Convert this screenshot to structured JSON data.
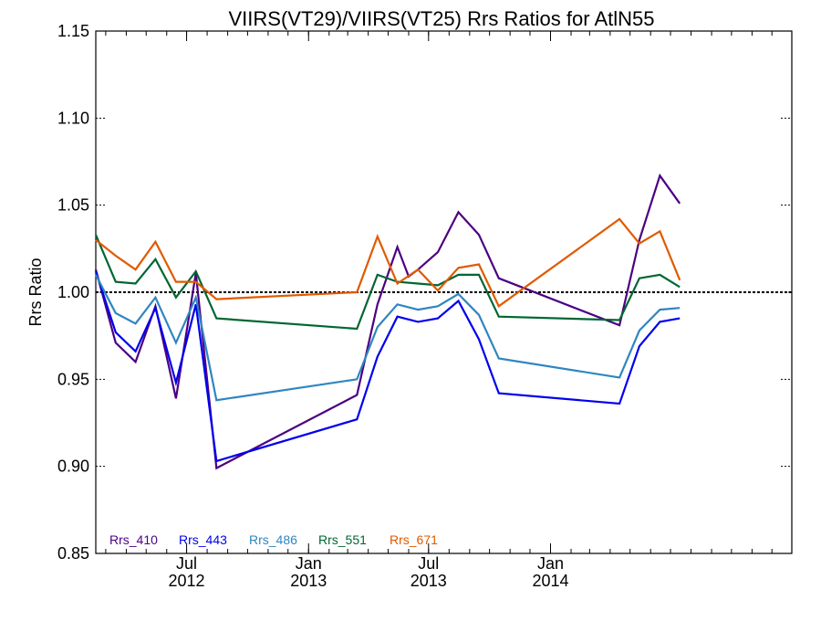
{
  "chart_data": {
    "type": "line",
    "title": "VIIRS(VT29)/VIIRS(VT25)  Rrs Ratios for AtlN55",
    "xlabel": "",
    "ylabel": "Rrs Ratio",
    "xlim": [
      "2012-02-15",
      "2014-12-31"
    ],
    "ylim": [
      0.85,
      1.15
    ],
    "yticks": [
      0.85,
      0.9,
      0.95,
      1.0,
      1.05,
      1.1,
      1.15
    ],
    "ytick_labels": [
      "0.85",
      "0.90",
      "0.95",
      "1.00",
      "1.05",
      "1.10",
      "1.15"
    ],
    "xticks": [
      {
        "date": "2012-07-01",
        "month": "Jul",
        "year": "2012"
      },
      {
        "date": "2013-01-01",
        "month": "Jan",
        "year": "2013"
      },
      {
        "date": "2013-07-01",
        "month": "Jul",
        "year": "2013"
      },
      {
        "date": "2014-01-01",
        "month": "Jan",
        "year": "2014"
      }
    ],
    "reference_line": 1.0,
    "grid": false,
    "legend_position": "bottom-left",
    "series": [
      {
        "name": "Rrs_410",
        "color": "#4b0082",
        "points": [
          [
            "2012-02-15",
            1.013
          ],
          [
            "2012-03-16",
            0.971
          ],
          [
            "2012-04-15",
            0.96
          ],
          [
            "2012-05-15",
            0.992
          ],
          [
            "2012-06-15",
            0.939
          ],
          [
            "2012-07-15",
            1.011
          ],
          [
            "2012-08-15",
            0.899
          ],
          [
            "2013-03-15",
            0.941
          ],
          [
            "2013-04-15",
            0.993
          ],
          [
            "2013-05-15",
            1.026
          ],
          [
            "2013-06-01",
            1.009
          ],
          [
            "2013-06-15",
            1.013
          ],
          [
            "2013-07-15",
            1.023
          ],
          [
            "2013-08-15",
            1.046
          ],
          [
            "2013-09-15",
            1.033
          ],
          [
            "2013-10-15",
            1.008
          ],
          [
            "2014-04-15",
            0.981
          ],
          [
            "2014-05-15",
            1.03
          ],
          [
            "2014-06-15",
            1.067
          ],
          [
            "2014-07-15",
            1.051
          ]
        ]
      },
      {
        "name": "Rrs_443",
        "color": "#0000ee",
        "points": [
          [
            "2012-02-15",
            1.012
          ],
          [
            "2012-03-16",
            0.977
          ],
          [
            "2012-04-15",
            0.966
          ],
          [
            "2012-05-15",
            0.991
          ],
          [
            "2012-06-15",
            0.948
          ],
          [
            "2012-07-15",
            0.993
          ],
          [
            "2012-08-15",
            0.903
          ],
          [
            "2013-03-15",
            0.927
          ],
          [
            "2013-04-15",
            0.963
          ],
          [
            "2013-05-15",
            0.986
          ],
          [
            "2013-06-15",
            0.983
          ],
          [
            "2013-07-15",
            0.985
          ],
          [
            "2013-08-15",
            0.995
          ],
          [
            "2013-09-15",
            0.973
          ],
          [
            "2013-10-15",
            0.942
          ],
          [
            "2014-04-15",
            0.936
          ],
          [
            "2014-05-15",
            0.969
          ],
          [
            "2014-06-15",
            0.983
          ],
          [
            "2014-07-15",
            0.985
          ]
        ]
      },
      {
        "name": "Rrs_486",
        "color": "#2e86c1",
        "points": [
          [
            "2012-02-15",
            1.01
          ],
          [
            "2012-03-16",
            0.988
          ],
          [
            "2012-04-15",
            0.982
          ],
          [
            "2012-05-15",
            0.997
          ],
          [
            "2012-06-15",
            0.971
          ],
          [
            "2012-07-15",
            0.997
          ],
          [
            "2012-08-15",
            0.938
          ],
          [
            "2013-03-15",
            0.95
          ],
          [
            "2013-04-15",
            0.98
          ],
          [
            "2013-05-15",
            0.993
          ],
          [
            "2013-06-15",
            0.99
          ],
          [
            "2013-07-15",
            0.992
          ],
          [
            "2013-08-15",
            0.999
          ],
          [
            "2013-09-15",
            0.987
          ],
          [
            "2013-10-15",
            0.962
          ],
          [
            "2014-04-15",
            0.951
          ],
          [
            "2014-05-15",
            0.978
          ],
          [
            "2014-06-15",
            0.99
          ],
          [
            "2014-07-15",
            0.991
          ]
        ]
      },
      {
        "name": "Rrs_551",
        "color": "#006633",
        "points": [
          [
            "2012-02-15",
            1.033
          ],
          [
            "2012-03-16",
            1.006
          ],
          [
            "2012-04-15",
            1.005
          ],
          [
            "2012-05-15",
            1.019
          ],
          [
            "2012-06-15",
            0.997
          ],
          [
            "2012-07-15",
            1.012
          ],
          [
            "2012-08-15",
            0.985
          ],
          [
            "2013-03-15",
            0.979
          ],
          [
            "2013-04-15",
            1.01
          ],
          [
            "2013-05-15",
            1.006
          ],
          [
            "2013-06-15",
            1.005
          ],
          [
            "2013-07-15",
            1.004
          ],
          [
            "2013-08-15",
            1.01
          ],
          [
            "2013-09-15",
            1.01
          ],
          [
            "2013-10-15",
            0.986
          ],
          [
            "2014-04-15",
            0.984
          ],
          [
            "2014-05-15",
            1.008
          ],
          [
            "2014-06-15",
            1.01
          ],
          [
            "2014-07-15",
            1.003
          ]
        ]
      },
      {
        "name": "Rrs_671",
        "color": "#e05a00",
        "points": [
          [
            "2012-02-15",
            1.03
          ],
          [
            "2012-03-16",
            1.021
          ],
          [
            "2012-04-15",
            1.013
          ],
          [
            "2012-05-15",
            1.029
          ],
          [
            "2012-06-15",
            1.006
          ],
          [
            "2012-07-15",
            1.006
          ],
          [
            "2012-08-15",
            0.996
          ],
          [
            "2013-03-15",
            1.0
          ],
          [
            "2013-04-15",
            1.032
          ],
          [
            "2013-05-15",
            1.005
          ],
          [
            "2013-06-15",
            1.013
          ],
          [
            "2013-07-15",
            1.001
          ],
          [
            "2013-08-15",
            1.014
          ],
          [
            "2013-09-15",
            1.016
          ],
          [
            "2013-10-15",
            0.992
          ],
          [
            "2014-04-15",
            1.042
          ],
          [
            "2014-05-15",
            1.028
          ],
          [
            "2014-06-15",
            1.035
          ],
          [
            "2014-07-15",
            1.007
          ]
        ]
      }
    ]
  }
}
